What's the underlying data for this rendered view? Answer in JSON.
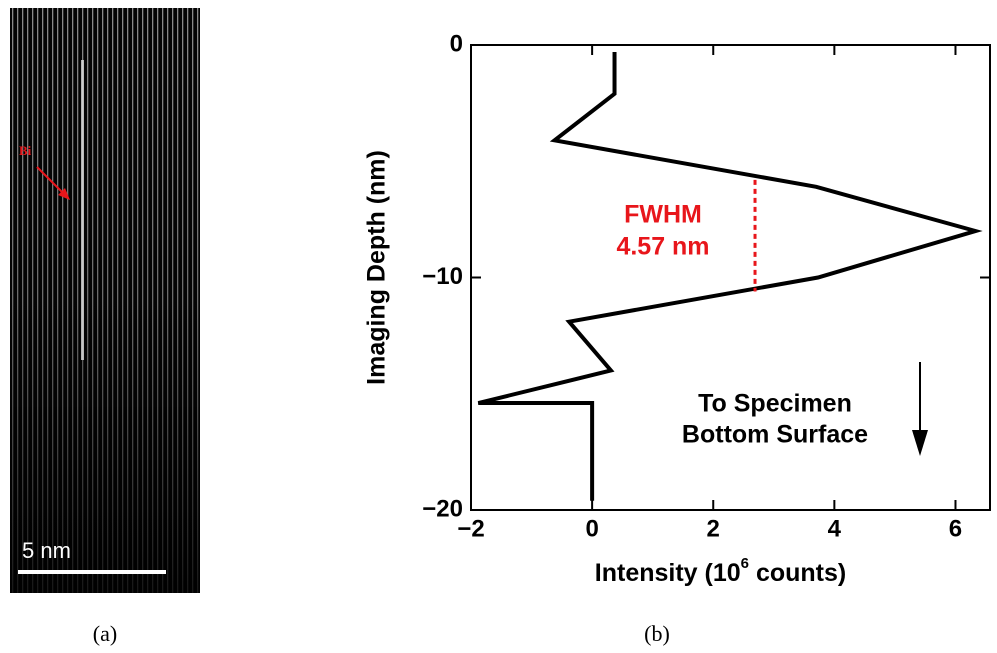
{
  "panel_a": {
    "marker_label": "Bi",
    "scale_bar_label": "5 nm",
    "caption": "(a)"
  },
  "panel_b_caption": "(b)",
  "chart_data": {
    "type": "line",
    "xlabel": [
      "Intensity (10",
      "6",
      " counts)"
    ],
    "ylabel": "Imaging Depth (nm)",
    "x": [
      0.37,
      0.37,
      -0.62,
      3.7,
      6.33,
      3.73,
      -0.38,
      0.31,
      -1.88,
      0.0,
      0.0
    ],
    "values": [
      -0.3,
      -2.1,
      -4.1,
      -6.1,
      -8.0,
      -10.0,
      -11.9,
      -14.0,
      -15.4,
      -15.4,
      -19.6
    ],
    "color": "#000000",
    "xlim": [
      -2,
      6.57
    ],
    "ylim": [
      -20,
      0
    ],
    "xticks": [
      {
        "value": -2,
        "label": "−2"
      },
      0,
      2,
      4,
      6
    ],
    "yticks": [
      0,
      {
        "value": -10,
        "label": "−10"
      },
      {
        "value": -20,
        "label": "−20"
      }
    ],
    "fwhm": {
      "x": 2.69,
      "y_top": -5.8,
      "y_bottom": -10.6,
      "color": "#e8161b",
      "label": [
        "FWHM",
        "4.57 nm"
      ]
    },
    "note": [
      "To Specimen",
      "Bottom Surface"
    ]
  }
}
